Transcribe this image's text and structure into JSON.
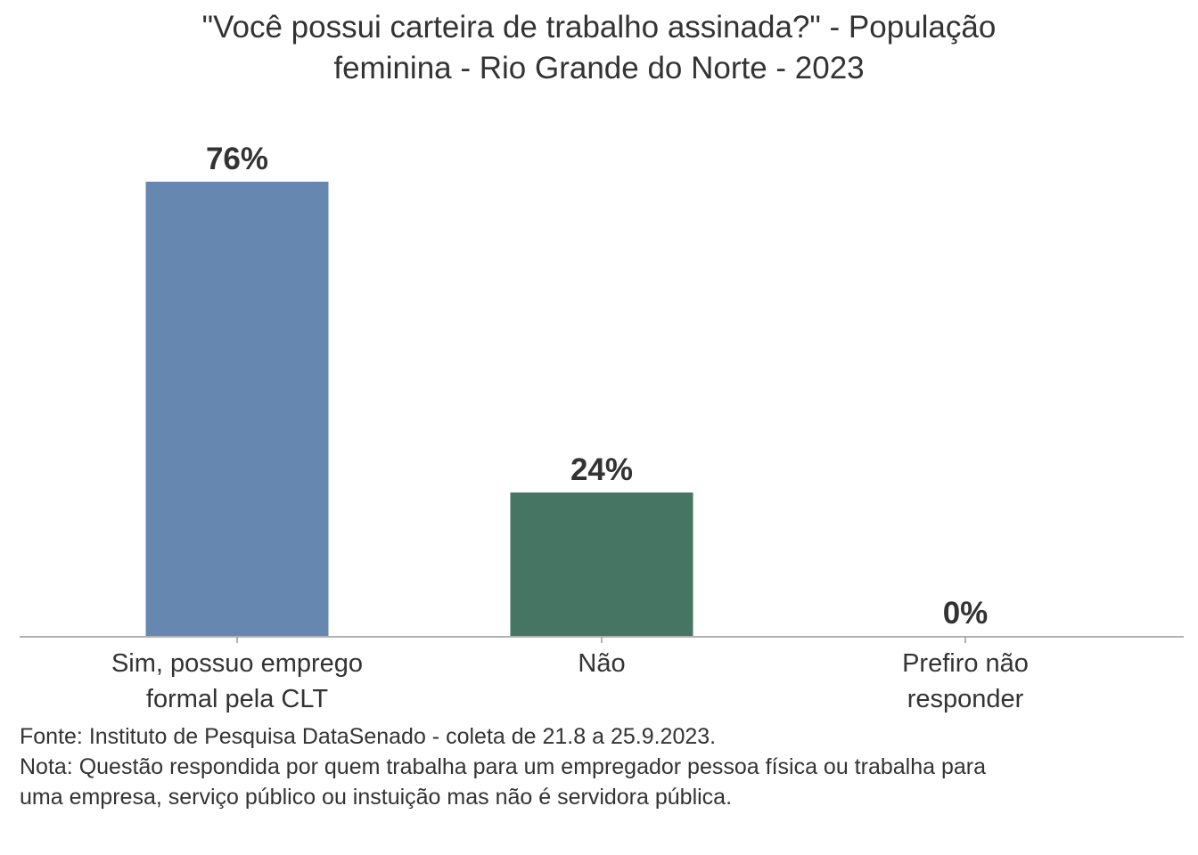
{
  "chart_data": {
    "type": "bar",
    "title_lines": [
      "\"Você possui carteira de trabalho assinada?\" - População",
      "feminina - Rio Grande do Norte - 2023"
    ],
    "categories": [
      [
        "Sim, possuo emprego",
        "formal pela CLT"
      ],
      [
        "Não"
      ],
      [
        "Prefiro não",
        "responder"
      ]
    ],
    "values": [
      76,
      24,
      0
    ],
    "data_labels": [
      "76%",
      "24%",
      "0%"
    ],
    "colors": [
      "#6688b0",
      "#467563",
      "#8a8a8a"
    ],
    "xlabel": "",
    "ylabel": "",
    "ylim": [
      0,
      76
    ],
    "grid": false,
    "legend": "none"
  },
  "footer": {
    "source": "Fonte: Instituto de Pesquisa DataSenado - coleta de 21.8 a 25.9.2023.",
    "note": "Nota: Questão respondida por quem trabalha para um empregador pessoa física ou trabalha para uma empresa, serviço público ou instuição mas não é servidora pública."
  }
}
